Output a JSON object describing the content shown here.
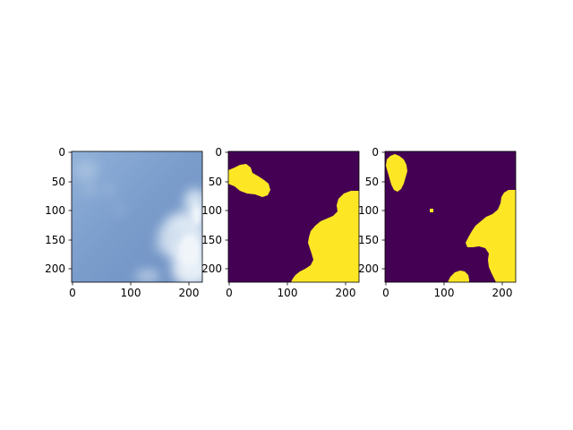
{
  "figure": {
    "panels": [
      {
        "name": "input-image",
        "content": "cloud photo (blue sky with white clouds)",
        "x_ticks": [
          "0",
          "100",
          "200"
        ],
        "y_ticks": [
          "0",
          "50",
          "100",
          "150",
          "200"
        ]
      },
      {
        "name": "mask-a",
        "content": "binary segmentation mask",
        "x_ticks": [
          "0",
          "100",
          "200"
        ],
        "y_ticks": [
          "0",
          "50",
          "100",
          "150",
          "200"
        ]
      },
      {
        "name": "mask-b",
        "content": "binary segmentation mask",
        "x_ticks": [
          "0",
          "100",
          "200"
        ],
        "y_ticks": [
          "0",
          "50",
          "100",
          "150",
          "200"
        ]
      }
    ],
    "colors": {
      "mask_background": "#440154",
      "mask_foreground": "#fde725",
      "sky": "#7a9ccb",
      "cloud": "#e8f0f8"
    }
  }
}
